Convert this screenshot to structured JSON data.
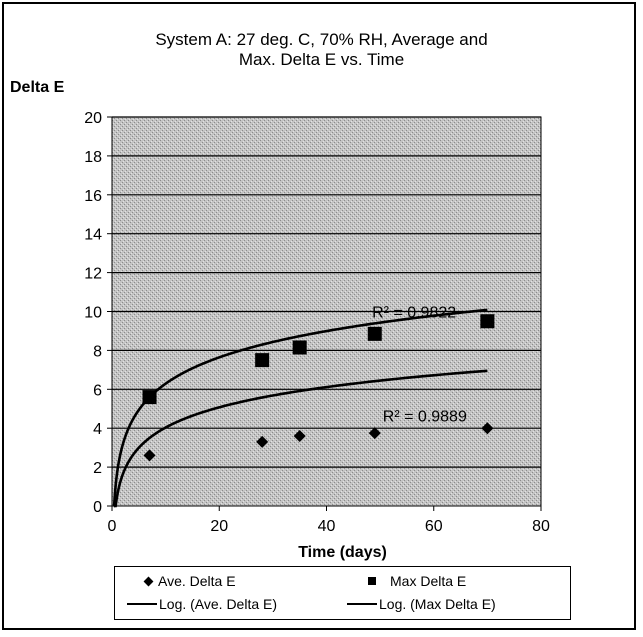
{
  "chart_data": {
    "type": "scatter",
    "title_lines": [
      "System A: 27 deg. C, 70% RH, Average and",
      "Max. Delta E vs. Time"
    ],
    "xlabel": "Time (days)",
    "ylabel": "Delta E",
    "xlim": [
      0,
      80
    ],
    "ylim": [
      0,
      20
    ],
    "x_ticks": [
      "0",
      "20",
      "40",
      "60",
      "80"
    ],
    "y_ticks": [
      "0",
      "2",
      "4",
      "6",
      "8",
      "10",
      "12",
      "14",
      "16",
      "18",
      "20"
    ],
    "grid": "horizontal",
    "series": [
      {
        "name": "Ave. Delta E",
        "marker": "diamond",
        "x": [
          7,
          28,
          35,
          49,
          70
        ],
        "y": [
          2.6,
          3.3,
          3.6,
          3.75,
          4.0
        ]
      },
      {
        "name": "Max Delta E",
        "marker": "square",
        "x": [
          7,
          28,
          35,
          49,
          70
        ],
        "y": [
          5.6,
          7.5,
          8.15,
          8.85,
          9.5
        ]
      }
    ],
    "trendlines": [
      {
        "name": "Log. (Ave. Delta E)",
        "type": "logarithmic",
        "a": 1.5,
        "b": 0.58,
        "r2_label": "R² = 0.9889"
      },
      {
        "name": "Log. (Max Delta E)",
        "type": "logarithmic",
        "a": 1.95,
        "b": 1.8,
        "r2_label": "R² = 0.9822"
      }
    ]
  }
}
